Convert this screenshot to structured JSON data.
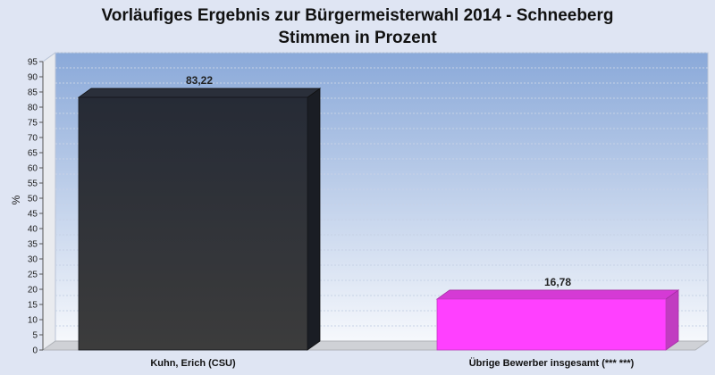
{
  "chart_data": {
    "type": "bar",
    "title": "Vorläufiges Ergebnis zur Bürgermeisterwahl 2014 - Schneeberg",
    "subtitle": "Stimmen in Prozent",
    "ylabel": "%",
    "xlabel": "",
    "ylim": [
      0,
      95
    ],
    "yticks": [
      0,
      5,
      10,
      15,
      20,
      25,
      30,
      35,
      40,
      45,
      50,
      55,
      60,
      65,
      70,
      75,
      80,
      85,
      90,
      95
    ],
    "categories": [
      "Kuhn, Erich (CSU)",
      "Übrige Bewerber insgesamt (***  ***)"
    ],
    "values": [
      83.22,
      16.78
    ],
    "value_labels": [
      "83,22",
      "16,78"
    ],
    "colors": [
      "#2f3036",
      "#ff40ff"
    ],
    "grid": true,
    "legend": "none"
  }
}
